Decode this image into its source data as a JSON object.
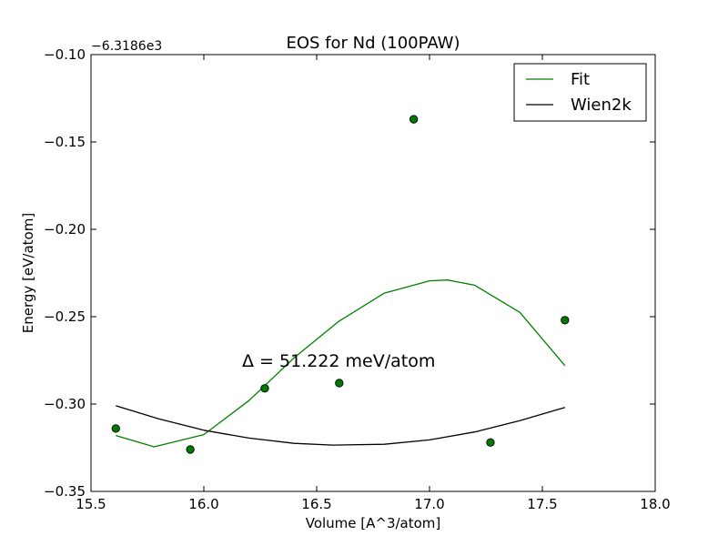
{
  "chart_data": {
    "type": "line",
    "title": "EOS for Nd (100PAW)",
    "xlabel": "Volume [A^3/atom]",
    "ylabel": "Energy [eV/atom]",
    "offset_label": "−6.3186e3",
    "xlim": [
      15.5,
      18.0
    ],
    "ylim": [
      -0.35,
      -0.1
    ],
    "xticks": [
      15.5,
      16.0,
      16.5,
      17.0,
      17.5,
      18.0
    ],
    "xtick_labels": [
      "15.5",
      "16.0",
      "16.5",
      "17.0",
      "17.5",
      "18.0"
    ],
    "yticks": [
      -0.35,
      -0.3,
      -0.25,
      -0.2,
      -0.15,
      -0.1
    ],
    "ytick_labels": [
      "−0.35",
      "−0.30",
      "−0.25",
      "−0.20",
      "−0.15",
      "−0.10"
    ],
    "grid": false,
    "legend_position": "top-right",
    "annotation": "Δ = 51.222 meV/atom",
    "points": {
      "color": "#007a00",
      "x": [
        15.61,
        15.94,
        16.27,
        16.6,
        16.93,
        17.27,
        17.6
      ],
      "y": [
        -0.314,
        -0.326,
        -0.291,
        -0.288,
        -0.137,
        -0.322,
        -0.252
      ]
    },
    "series": [
      {
        "name": "Fit",
        "color": "#008000",
        "x": [
          15.61,
          15.78,
          16.0,
          16.2,
          16.4,
          16.6,
          16.8,
          17.0,
          17.08,
          17.2,
          17.4,
          17.6
        ],
        "y": [
          -0.318,
          -0.3245,
          -0.3175,
          -0.298,
          -0.2735,
          -0.2525,
          -0.2365,
          -0.2295,
          -0.229,
          -0.232,
          -0.2475,
          -0.278
        ]
      },
      {
        "name": "Wien2k",
        "color": "#000000",
        "x": [
          15.61,
          15.8,
          16.0,
          16.2,
          16.4,
          16.57,
          16.8,
          17.0,
          17.2,
          17.4,
          17.6
        ],
        "y": [
          -0.301,
          -0.3085,
          -0.315,
          -0.3195,
          -0.3225,
          -0.3235,
          -0.323,
          -0.3205,
          -0.316,
          -0.3095,
          -0.302
        ]
      }
    ]
  }
}
